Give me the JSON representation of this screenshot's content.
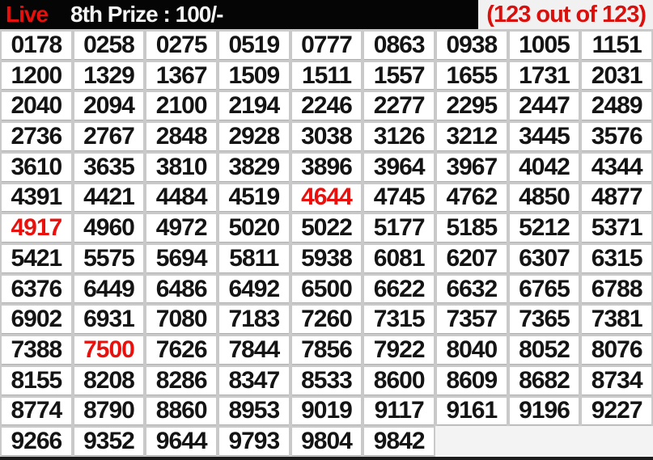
{
  "header": {
    "live_label": "Live",
    "title": "8th Prize : 100/-",
    "counter": "(123 out of 123)"
  },
  "colors": {
    "header_bg": "#050505",
    "live_red": "#e8100c",
    "title_white": "#f5f5f5",
    "badge_bg": "#f1f1f1",
    "badge_red": "#da100c",
    "cell_bg": "#ffffff",
    "number_black": "#141414",
    "highlight_red": "#e8110d",
    "grid_gap": "#c9c9c9"
  },
  "grid": {
    "columns": 9,
    "total_numbers": 123,
    "numbers": [
      "0178",
      "0258",
      "0275",
      "0519",
      "0777",
      "0863",
      "0938",
      "1005",
      "1151",
      "1200",
      "1329",
      "1367",
      "1509",
      "1511",
      "1557",
      "1655",
      "1731",
      "2031",
      "2040",
      "2094",
      "2100",
      "2194",
      "2246",
      "2277",
      "2295",
      "2447",
      "2489",
      "2736",
      "2767",
      "2848",
      "2928",
      "3038",
      "3126",
      "3212",
      "3445",
      "3576",
      "3610",
      "3635",
      "3810",
      "3829",
      "3896",
      "3964",
      "3967",
      "4042",
      "4344",
      "4391",
      "4421",
      "4484",
      "4519",
      "4644",
      "4745",
      "4762",
      "4850",
      "4877",
      "4917",
      "4960",
      "4972",
      "5020",
      "5022",
      "5177",
      "5185",
      "5212",
      "5371",
      "5421",
      "5575",
      "5694",
      "5811",
      "5938",
      "6081",
      "6207",
      "6307",
      "6315",
      "6376",
      "6449",
      "6486",
      "6492",
      "6500",
      "6622",
      "6632",
      "6765",
      "6788",
      "6902",
      "6931",
      "7080",
      "7183",
      "7260",
      "7315",
      "7357",
      "7365",
      "7381",
      "7388",
      "7500",
      "7626",
      "7844",
      "7856",
      "7922",
      "8040",
      "8052",
      "8076",
      "8155",
      "8208",
      "8286",
      "8347",
      "8533",
      "8600",
      "8609",
      "8682",
      "8734",
      "8774",
      "8790",
      "8860",
      "8953",
      "9019",
      "9117",
      "9161",
      "9196",
      "9227",
      "9266",
      "9352",
      "9644",
      "9793",
      "9804",
      "9842"
    ],
    "highlighted": [
      "4644",
      "4917",
      "7500"
    ]
  }
}
